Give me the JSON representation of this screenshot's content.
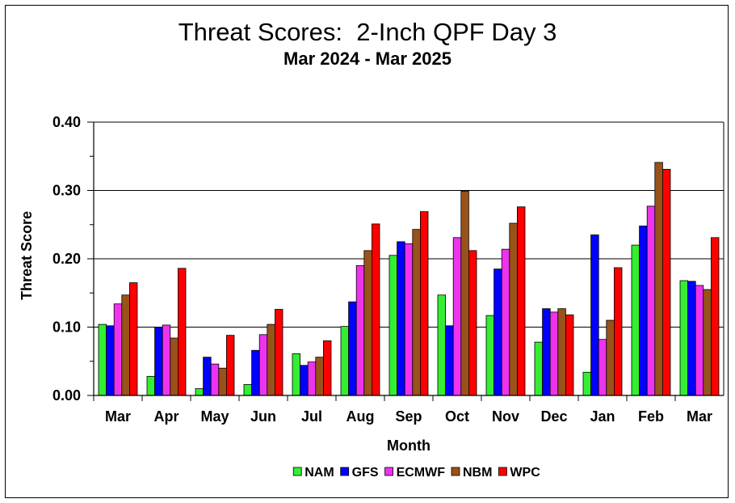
{
  "chart_data": {
    "type": "bar",
    "title": "Threat Scores:  2-Inch QPF Day 3",
    "subtitle": "Mar 2024 - Mar 2025",
    "xlabel": "Month",
    "ylabel": "Threat Score",
    "ylim": [
      0,
      0.4
    ],
    "yticks": [
      "0.00",
      "0.10",
      "0.20",
      "0.30",
      "0.40"
    ],
    "grid": true,
    "legend_position": "bottom",
    "categories": [
      "Mar",
      "Apr",
      "May",
      "Jun",
      "Jul",
      "Aug",
      "Sep",
      "Oct",
      "Nov",
      "Dec",
      "Jan",
      "Feb",
      "Mar"
    ],
    "series": [
      {
        "name": "NAM",
        "color": "#33ee33",
        "values": [
          0.104,
          0.028,
          0.01,
          0.016,
          0.061,
          0.101,
          0.205,
          0.147,
          0.117,
          0.078,
          0.034,
          0.22,
          0.168
        ]
      },
      {
        "name": "GFS",
        "color": "#0000ff",
        "values": [
          0.102,
          0.1,
          0.056,
          0.066,
          0.044,
          0.137,
          0.225,
          0.102,
          0.185,
          0.127,
          0.235,
          0.248,
          0.167
        ]
      },
      {
        "name": "ECMWF",
        "color": "#ee33ee",
        "values": [
          0.134,
          0.103,
          0.046,
          0.089,
          0.049,
          0.19,
          0.222,
          0.231,
          0.214,
          0.122,
          0.082,
          0.277,
          0.161
        ]
      },
      {
        "name": "NBM",
        "color": "#99521a",
        "values": [
          0.147,
          0.084,
          0.04,
          0.104,
          0.056,
          0.212,
          0.243,
          0.299,
          0.252,
          0.127,
          0.11,
          0.341,
          0.155
        ]
      },
      {
        "name": "WPC",
        "color": "#ff0000",
        "values": [
          0.165,
          0.186,
          0.088,
          0.126,
          0.08,
          0.251,
          0.269,
          0.212,
          0.276,
          0.118,
          0.187,
          0.331,
          0.231
        ]
      }
    ]
  }
}
